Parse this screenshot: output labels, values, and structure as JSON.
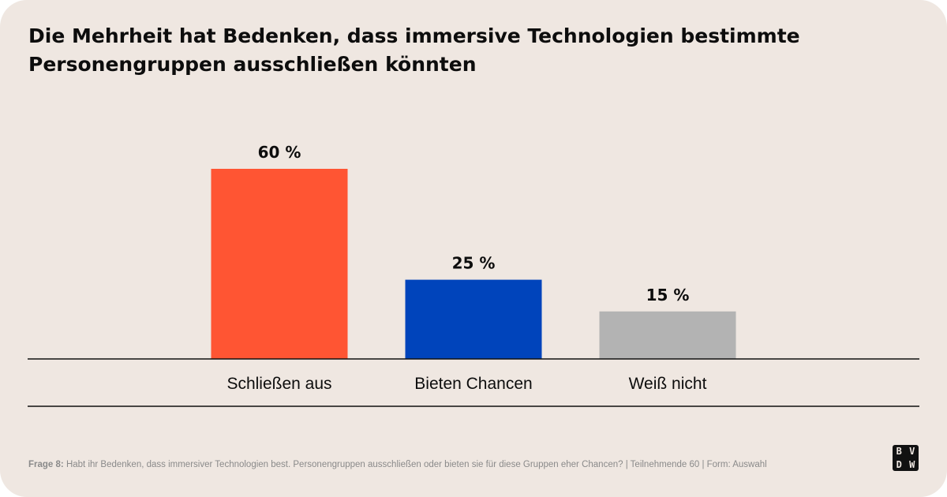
{
  "title": {
    "line1": "Die Mehrheit hat Bedenken, dass immersive Technologien bestimmte",
    "line2": "Personengruppen ausschließen könnten"
  },
  "chart_data": {
    "type": "bar",
    "title": "Die Mehrheit hat Bedenken, dass immersive Technologien bestimmte Personengruppen ausschließen könnten",
    "categories": [
      "Schließen aus",
      "Bieten Chancen",
      "Weiß nicht"
    ],
    "values": [
      60,
      25,
      15
    ],
    "value_labels": [
      "60 %",
      "25 %",
      "15 %"
    ],
    "colors": [
      "#ff5533",
      "#0044bb",
      "#b3b3b3"
    ],
    "xlabel": "",
    "ylabel": "",
    "ylim": [
      0,
      60
    ],
    "grid": false,
    "legend": "none"
  },
  "footnote": {
    "label": "Frage 8:",
    "text": "Habt ihr Bedenken, dass immersiver Technologien best. Personengruppen ausschließen oder bieten sie für diese Gruppen eher Chancen? | Teilnehmende 60 | Form: Auswahl"
  },
  "logo": {
    "letters": [
      "B",
      "V",
      "D",
      "W"
    ]
  },
  "colors": {
    "background": "#efe7e1",
    "text": "#0d0d0d",
    "axis": "#111111",
    "footnote": "#8a8a8a"
  }
}
